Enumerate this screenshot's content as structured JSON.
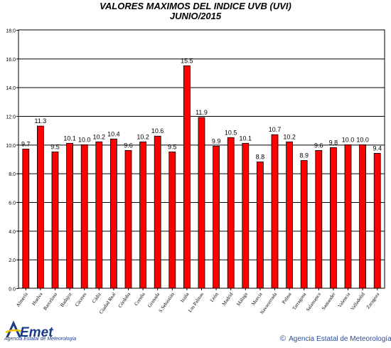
{
  "chart_data": {
    "type": "bar",
    "title": "VALORES MAXIMOS DEL INDICE UVB (UVI)",
    "subtitle": "JUNIO/2015",
    "xlabel": "",
    "ylabel": "",
    "ylim": [
      0,
      18
    ],
    "yticks": [
      "0.0",
      "2.0",
      "4.0",
      "6.0",
      "8.0",
      "10.0",
      "12.0",
      "14.0",
      "16.0",
      "18.0"
    ],
    "grid": true,
    "bar_color": "#ff0000",
    "categories": [
      "Almería",
      "Huelva",
      "Barcelona",
      "Badajoz",
      "Cáceres",
      "Cádiz",
      "Ciudad Real",
      "Córdoba",
      "Coruña",
      "Granada",
      "S.Sebastián",
      "Izaña",
      "Las Palmas",
      "León",
      "Madrid",
      "Málaga",
      "Murcia",
      "Navacerrada",
      "Palma",
      "Tarragona",
      "Salamanca",
      "Santander",
      "Valencia",
      "Valladolid",
      "Zaragoza"
    ],
    "values": [
      9.7,
      11.3,
      9.5,
      10.1,
      10.0,
      10.2,
      10.4,
      9.6,
      10.2,
      10.6,
      9.5,
      15.5,
      11.9,
      9.9,
      10.5,
      10.1,
      8.8,
      10.7,
      10.2,
      8.9,
      9.6,
      9.8,
      10.0,
      10.0,
      9.4
    ],
    "value_labels": [
      "9.7",
      "11.3",
      "9.5",
      "10.1",
      "10.0",
      "10.2",
      "10.4",
      "9.6",
      "10.2",
      "10.6",
      "9.5",
      "15.5",
      "11.9",
      "9.9",
      "10.5",
      "10.1",
      "8.8",
      "10.7",
      "10.2",
      "8.9",
      "9.6",
      "9.8",
      "10.0",
      "10.0",
      "9.4"
    ]
  },
  "footer": {
    "logo_text": "Agencia Estatal de Meteorología",
    "copyright": "Agencia Estatal de Meteorología"
  },
  "colors": {
    "bar": "#ff0000",
    "logo_blue": "#1a3a8a",
    "logo_yellow": "#f2c200",
    "copyright": "#2a4fa0"
  }
}
